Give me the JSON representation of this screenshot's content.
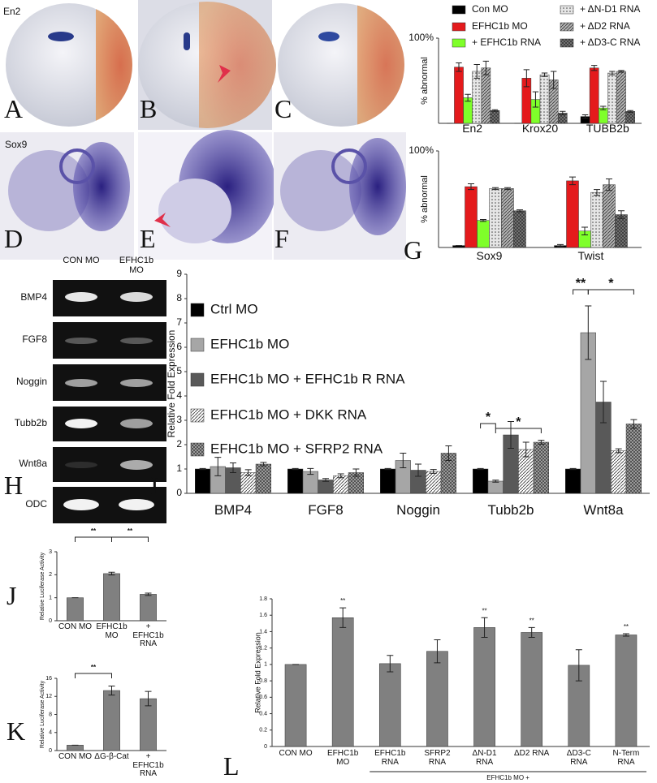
{
  "panel_letters": [
    "A",
    "B",
    "C",
    "D",
    "E",
    "F",
    "G",
    "H",
    "I",
    "J",
    "K",
    "L"
  ],
  "photo_labels": [
    "En2",
    "Sox9"
  ],
  "gel": {
    "columns": [
      "CON MO",
      "EFHC1b MO"
    ],
    "rows": [
      "BMP4",
      "FGF8",
      "Noggin",
      "Tubb2b",
      "Wnt8a",
      "ODC"
    ]
  },
  "chart_data": [
    {
      "type": "bar",
      "ylabel": "% abnormal",
      "categories": [
        "En2",
        "Krox20",
        "TUBB2b"
      ],
      "ylim": [
        0,
        100
      ],
      "yticks": [
        {
          "value": 100,
          "label": "100%"
        }
      ],
      "series": [
        {
          "name": "Con MO",
          "color": "#000000",
          "values": [
            0,
            0,
            8
          ],
          "errors": [
            0,
            0,
            2
          ]
        },
        {
          "name": "EFHC1b MO",
          "color": "#e41a1c",
          "values": [
            66,
            53,
            65
          ],
          "errors": [
            5,
            10,
            3
          ]
        },
        {
          "name": "+ EFHC1b RNA",
          "color": "#7fff2a",
          "values": [
            30,
            28,
            18
          ],
          "errors": [
            4,
            9,
            2
          ]
        },
        {
          "name": "+ ΔN-D1 RNA",
          "color": "#e6e6e6",
          "pattern": "dots",
          "values": [
            61,
            57,
            59
          ],
          "errors": [
            8,
            2,
            2
          ]
        },
        {
          "name": "+ ΔD2 RNA",
          "color": "#b3b3b3",
          "pattern": "hatch",
          "values": [
            65,
            51,
            61
          ],
          "errors": [
            8,
            10,
            1
          ]
        },
        {
          "name": "+ ΔD3-C RNA",
          "color": "#707070",
          "pattern": "check",
          "values": [
            15,
            12,
            14
          ],
          "errors": [
            1,
            2,
            1
          ]
        }
      ]
    },
    {
      "type": "bar",
      "ylabel": "% abnormal",
      "categories": [
        "Sox9",
        "Twist"
      ],
      "ylim": [
        0,
        100
      ],
      "yticks": [
        {
          "value": 100,
          "label": "100%"
        }
      ],
      "series": [
        {
          "color": "#000000",
          "values": [
            2,
            2
          ],
          "errors": [
            0,
            1
          ]
        },
        {
          "color": "#e41a1c",
          "values": [
            63,
            69
          ],
          "errors": [
            3,
            4
          ]
        },
        {
          "color": "#7fff2a",
          "values": [
            28,
            17
          ],
          "errors": [
            1,
            4
          ]
        },
        {
          "color": "#e6e6e6",
          "pattern": "dots",
          "values": [
            61,
            57
          ],
          "errors": [
            1,
            3
          ]
        },
        {
          "color": "#b3b3b3",
          "pattern": "hatch",
          "values": [
            61,
            65
          ],
          "errors": [
            1,
            6
          ]
        },
        {
          "color": "#707070",
          "pattern": "check",
          "values": [
            38,
            34
          ],
          "errors": [
            1,
            4
          ]
        }
      ]
    },
    {
      "type": "bar",
      "ylabel": "Relative Fold Expression",
      "categories": [
        "BMP4",
        "FGF8",
        "Noggin",
        "Tubb2b",
        "Wnt8a"
      ],
      "ylim": [
        0,
        9
      ],
      "yticks": [
        0,
        1,
        2,
        3,
        4,
        5,
        6,
        7,
        8,
        9
      ],
      "annotations": [
        "*",
        "*",
        "**",
        "*"
      ],
      "series": [
        {
          "name": "Ctrl MO",
          "color": "#000000",
          "values": [
            1,
            1,
            1,
            1,
            1
          ],
          "errors": [
            0.02,
            0.02,
            0.02,
            0.02,
            0.02
          ]
        },
        {
          "name": "EFHC1b MO",
          "color": "#a6a6a6",
          "values": [
            1.1,
            0.9,
            1.35,
            0.5,
            6.6
          ],
          "errors": [
            0.38,
            0.12,
            0.3,
            0.04,
            1.1
          ]
        },
        {
          "name": "EFHC1b MO + EFHC1b R RNA",
          "color": "#595959",
          "values": [
            1.05,
            0.55,
            0.95,
            2.4,
            3.75
          ],
          "errors": [
            0.2,
            0.06,
            0.25,
            0.55,
            0.85
          ]
        },
        {
          "name": "EFHC1b MO +  DKK RNA",
          "color": "#ffffff",
          "pattern": "hatch",
          "values": [
            0.85,
            0.72,
            0.9,
            1.8,
            1.75
          ],
          "errors": [
            0.12,
            0.08,
            0.08,
            0.3,
            0.08
          ]
        },
        {
          "name": "EFHC1b MO +  SFRP2 RNA",
          "color": "#9a9a9a",
          "pattern": "check",
          "values": [
            1.2,
            0.85,
            1.65,
            2.1,
            2.85
          ],
          "errors": [
            0.07,
            0.15,
            0.3,
            0.08,
            0.18
          ]
        }
      ]
    },
    {
      "type": "bar",
      "ylabel": "Relative Luciferase Activity",
      "categories": [
        "CON MO",
        "EFHC1b MO",
        "+ EFHC1b RNA"
      ],
      "color": "#808080",
      "values": [
        1,
        2.05,
        1.15
      ],
      "errors": [
        0,
        0.06,
        0.05
      ],
      "ylim": [
        0,
        3
      ],
      "yticks": [
        0,
        1,
        2,
        3
      ],
      "annotations": [
        "**",
        "**"
      ]
    },
    {
      "type": "bar",
      "ylabel": "Relative Luciferase Activity",
      "categories": [
        "CON MO",
        "ΔG-β-Cat",
        "+ EFHC1b RNA"
      ],
      "color": "#808080",
      "values": [
        1.2,
        13.3,
        11.5
      ],
      "errors": [
        0,
        1,
        1.6
      ],
      "ylim": [
        0,
        16
      ],
      "yticks": [
        0,
        4,
        8,
        12,
        16
      ],
      "annotations": [
        "**"
      ]
    },
    {
      "type": "bar",
      "ylabel": "Relative Fold Expression",
      "categories": [
        "CON MO",
        "EFHC1b MO",
        "EFHC1b RNA",
        "SFRP2 RNA",
        "ΔN-D1 RNA",
        "ΔD2 RNA",
        "ΔD3-C RNA",
        "N-Term RNA"
      ],
      "color": "#808080",
      "values": [
        1,
        1.57,
        1.01,
        1.16,
        1.45,
        1.39,
        0.99,
        1.36
      ],
      "errors": [
        0,
        0.12,
        0.1,
        0.14,
        0.12,
        0.06,
        0.19,
        0.015
      ],
      "significance": [
        null,
        "**",
        null,
        null,
        "**",
        "**",
        null,
        "**"
      ],
      "group_label": "EFHC1b MO +",
      "ylim": [
        0,
        1.8
      ],
      "yticks": [
        0,
        0.2,
        0.4,
        0.6,
        0.8,
        1,
        1.2,
        1.4,
        1.6,
        1.8
      ]
    }
  ]
}
